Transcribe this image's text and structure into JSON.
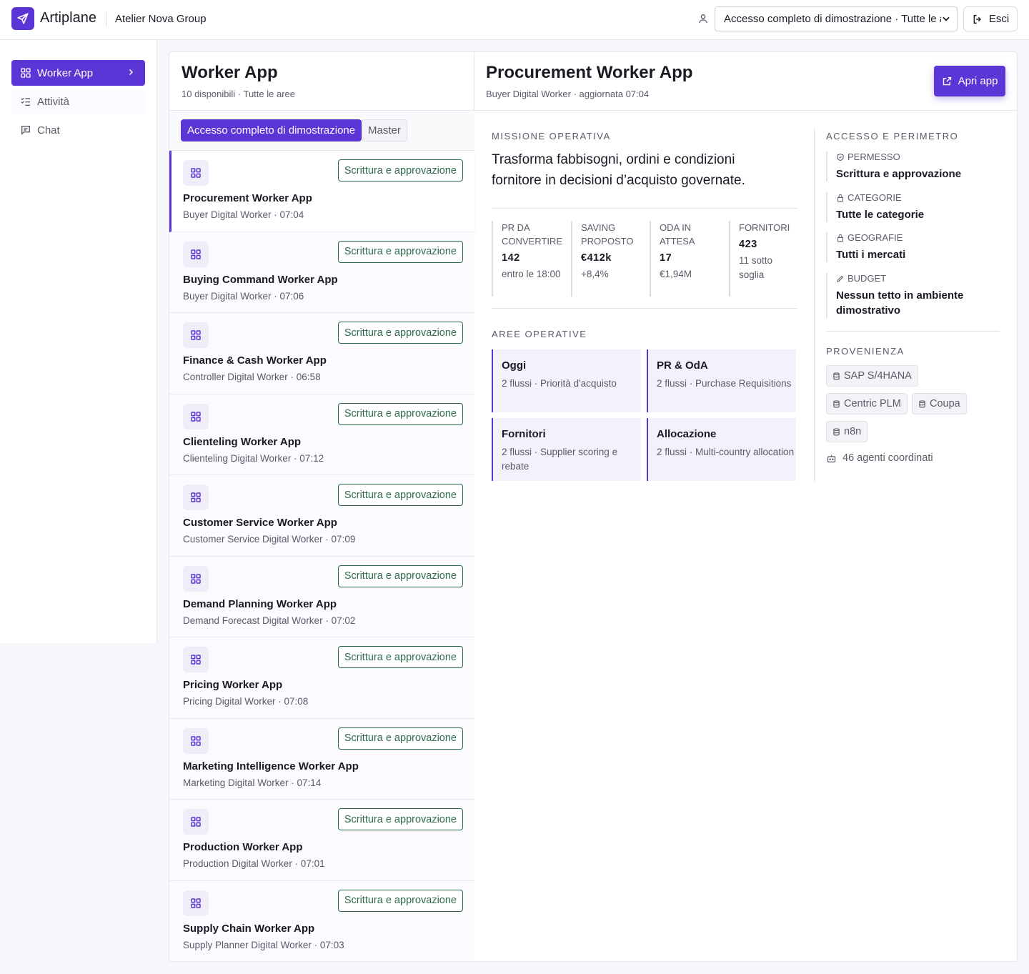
{
  "header": {
    "brand": "Artiplane",
    "org": "Atelier Nova Group",
    "scope_selected": "Accesso completo di dimostrazione · Tutte le aree",
    "logout_label": "Esci"
  },
  "sidebar": {
    "items": [
      {
        "label": "Worker App",
        "icon": "grid-icon",
        "active": true
      },
      {
        "label": "Attività",
        "icon": "checklist-icon"
      },
      {
        "label": "Chat",
        "icon": "chat-icon"
      }
    ]
  },
  "list": {
    "title": "Worker App",
    "subtitle": "10 disponibili · Tutte le aree",
    "filters": [
      "Accesso completo di dimostrazione",
      "Master"
    ],
    "items": [
      {
        "name": "Procurement Worker App",
        "meta": "Buyer Digital Worker · 07:04",
        "badge": "Scrittura e approvazione"
      },
      {
        "name": "Buying Command Worker App",
        "meta": "Buyer Digital Worker · 07:06",
        "badge": "Scrittura e approvazione"
      },
      {
        "name": "Finance & Cash Worker App",
        "meta": "Controller Digital Worker · 06:58",
        "badge": "Scrittura e approvazione"
      },
      {
        "name": "Clienteling Worker App",
        "meta": "Clienteling Digital Worker · 07:12",
        "badge": "Scrittura e approvazione"
      },
      {
        "name": "Customer Service Worker App",
        "meta": "Customer Service Digital Worker · 07:09",
        "badge": "Scrittura e approvazione"
      },
      {
        "name": "Demand Planning Worker App",
        "meta": "Demand Forecast Digital Worker · 07:02",
        "badge": "Scrittura e approvazione"
      },
      {
        "name": "Pricing Worker App",
        "meta": "Pricing Digital Worker · 07:08",
        "badge": "Scrittura e approvazione"
      },
      {
        "name": "Marketing Intelligence Worker App",
        "meta": "Marketing Digital Worker · 07:14",
        "badge": "Scrittura e approvazione"
      },
      {
        "name": "Production Worker App",
        "meta": "Production Digital Worker · 07:01",
        "badge": "Scrittura e approvazione"
      },
      {
        "name": "Supply Chain Worker App",
        "meta": "Supply Planner Digital Worker · 07:03",
        "badge": "Scrittura e approvazione"
      }
    ]
  },
  "detail": {
    "title": "Procurement Worker App",
    "subtitle": "Buyer Digital Worker · aggiornata 07:04",
    "open_label": "Apri app",
    "mission_label": "MISSIONE OPERATIVA",
    "mission_text": "Trasforma fabbisogni, ordini e condizioni fornitore in decisioni d’acquisto governate.",
    "kpis": [
      {
        "label": "PR DA CONVERTIRE",
        "value": "142",
        "detail": "entro le 18:00"
      },
      {
        "label": "SAVING PROPOSTO",
        "value": "€412k",
        "detail": "+8,4%"
      },
      {
        "label": "ODA IN ATTESA",
        "value": "17",
        "detail": "€1,94M"
      },
      {
        "label": "FORNITORI",
        "value": "423",
        "detail": "11 sotto soglia"
      }
    ],
    "areas_label": "AREE OPERATIVE",
    "areas": [
      {
        "name": "Oggi",
        "desc": "2 flussi · Priorità d'acquisto"
      },
      {
        "name": "PR & OdA",
        "desc": "2 flussi · Purchase Requisitions"
      },
      {
        "name": "Fornitori",
        "desc": "2 flussi · Supplier scoring e rebate"
      },
      {
        "name": "Allocazione",
        "desc": "2 flussi · Multi-country allocation"
      }
    ],
    "access_label": "ACCESSO E PERIMETRO",
    "permissions": [
      {
        "label": "PERMESSO",
        "value": "Scrittura e approvazione",
        "icon": "shield-check-icon"
      },
      {
        "label": "CATEGORIE",
        "value": "Tutte le categorie",
        "icon": "lock-icon"
      },
      {
        "label": "GEOGRAFIE",
        "value": "Tutti i mercati",
        "icon": "lock-icon"
      },
      {
        "label": "BUDGET",
        "value": "Nessun tetto in ambiente dimostrativo",
        "icon": "pencil-icon"
      }
    ],
    "provenance_label": "PROVENIENZA",
    "sources": [
      "SAP S/4HANA",
      "Centric PLM",
      "Coupa",
      "n8n"
    ],
    "agents": "46 agenti coordinati"
  },
  "colors": {
    "accent": "#5b35d5",
    "badge": "#2e6b4c"
  }
}
